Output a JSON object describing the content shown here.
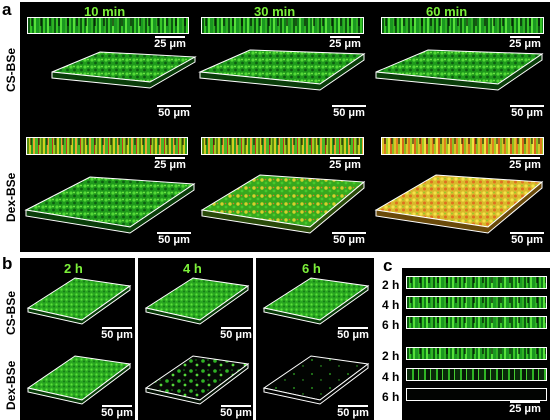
{
  "figure": {
    "panels": {
      "a": "a",
      "b": "b",
      "c": "c"
    },
    "panel_a": {
      "columns": [
        "10 min",
        "30 min",
        "60 min"
      ],
      "rows": [
        "CS-BSe",
        "Dex-BSe"
      ],
      "scale_xsection": "25 μm",
      "scale_volume": "50 μm"
    },
    "panel_b": {
      "columns": [
        "2 h",
        "4 h",
        "6 h"
      ],
      "rows": [
        "CS-BSe",
        "Dex-BSe"
      ],
      "scale_volume": "50 μm"
    },
    "panel_c": {
      "group1_times": [
        "2 h",
        "4 h",
        "6 h"
      ],
      "group2_times": [
        "2 h",
        "4 h",
        "6 h"
      ],
      "scale": "25 μm"
    },
    "colors": {
      "green_live": "#3ccf2a",
      "red_dead": "#e03a1a",
      "yellow_overlap": "#e8d830",
      "time_label": "#7cf03a"
    }
  }
}
